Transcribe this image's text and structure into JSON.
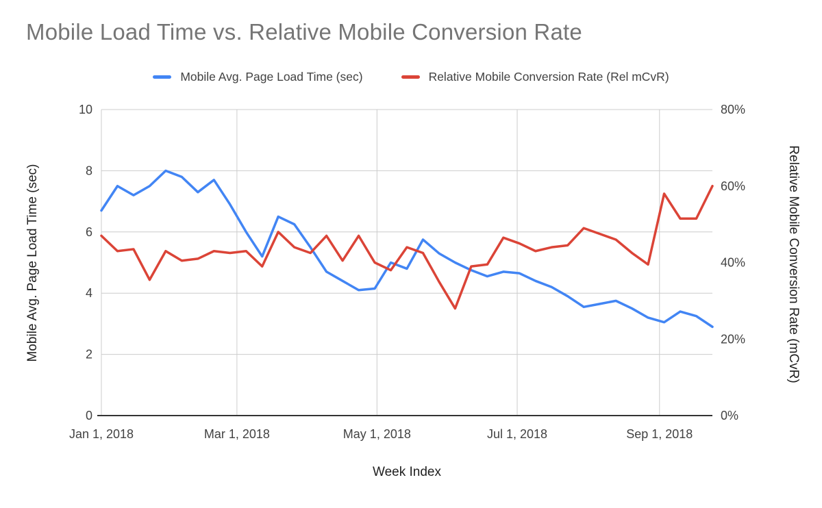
{
  "chart_data": {
    "type": "line",
    "title": "Mobile Load Time vs. Relative Mobile Conversion Rate",
    "xlabel": "Week Index",
    "ylabel_left": "Mobile Avg. Page Load Time (sec)",
    "ylabel_right": "Relative Mobile Conversion Rate (mCvR)",
    "grid": true,
    "legend_position": "top",
    "background_color": "#ffffff",
    "gridline_color": "#cccccc",
    "axis_line_color": "#333333",
    "x_axis": {
      "tick_labels": [
        "Jan 1, 2018",
        "Mar 1, 2018",
        "May 1, 2018",
        "Jul 1, 2018",
        "Sep 1, 2018"
      ],
      "tick_week_positions": [
        0,
        8.43,
        17.14,
        25.86,
        34.71
      ],
      "range_weeks": [
        0,
        38
      ]
    },
    "left_axis": {
      "ticks": [
        0,
        2,
        4,
        6,
        8,
        10
      ],
      "range": [
        0,
        10
      ]
    },
    "right_axis": {
      "tick_labels": [
        "0%",
        "20%",
        "40%",
        "60%",
        "80%"
      ],
      "tick_values": [
        0,
        20,
        40,
        60,
        80
      ],
      "range": [
        0,
        80
      ]
    },
    "series": [
      {
        "name": "Mobile Avg. Page Load Time (sec)",
        "axis": "left",
        "unit": "sec",
        "color": "#4285f4",
        "values": [
          6.7,
          7.5,
          7.2,
          7.5,
          8.0,
          7.8,
          7.3,
          7.7,
          6.9,
          6.0,
          5.2,
          6.5,
          6.25,
          5.5,
          4.7,
          4.4,
          4.1,
          4.15,
          5.0,
          4.8,
          5.75,
          5.3,
          5.0,
          4.75,
          4.55,
          4.7,
          4.65,
          4.4,
          4.2,
          3.9,
          3.55,
          3.65,
          3.75,
          3.5,
          3.2,
          3.05,
          3.4,
          3.25,
          2.9
        ]
      },
      {
        "name": "Relative Mobile Conversion Rate (Rel mCvR)",
        "axis": "right",
        "unit": "%",
        "color": "#db4437",
        "values": [
          47,
          43,
          43.5,
          35.5,
          43,
          40.5,
          41,
          43,
          42.5,
          43,
          39,
          48,
          44,
          42.5,
          47,
          40.5,
          47,
          40,
          38,
          44,
          42.5,
          35,
          28,
          39,
          39.5,
          46.5,
          45,
          43,
          44,
          44.5,
          49,
          47.5,
          46,
          42.5,
          39.5,
          58,
          51.5,
          51.5,
          60
        ]
      }
    ]
  }
}
